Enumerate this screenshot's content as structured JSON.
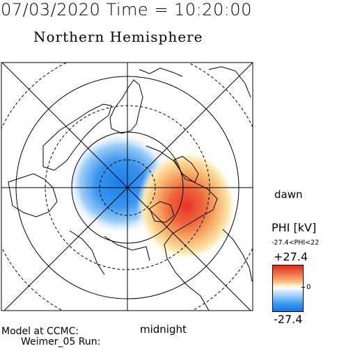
{
  "header": {
    "datetime": "07/03/2020 Time = 10:20:00",
    "title": "Northern Hemisphere"
  },
  "map": {
    "projection": "polar-stereographic-north",
    "gridlines": "dashed latitude circles, solid meridians",
    "field": "electric potential PHI",
    "dawn_cell_color": "#e8322a",
    "dusk_cell_color": "#1a7fe8",
    "coastline_color": "#000000"
  },
  "labels": {
    "dawn": "dawn",
    "midnight": "midnight"
  },
  "legend": {
    "title": "PHI [kV]",
    "range": "-27.4<PHI<22",
    "max": "+27.4",
    "zero": "0",
    "min": "-27.4"
  },
  "credit": {
    "line1": "Model at CCMC:",
    "line2": "Weimer_05 Run:"
  }
}
